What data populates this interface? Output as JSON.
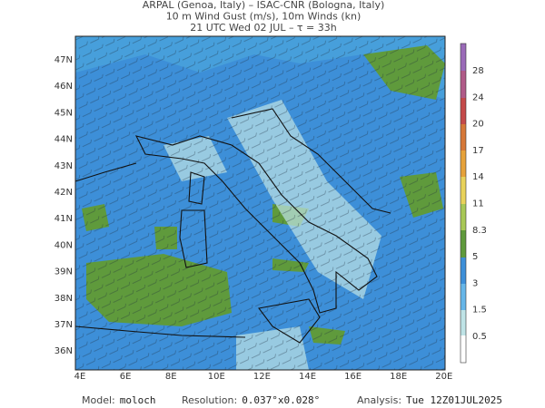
{
  "header": {
    "lines": [
      "ARPAL (Genoa, Italy)  –  ISAC-CNR (Bologna, Italy)",
      "10 m Wind Gust (m/s), 10m Winds (kn)",
      "21 UTC Wed 02 JUL  –  τ = 33h"
    ]
  },
  "map": {
    "lat_labels": [
      "47N",
      "46N",
      "45N",
      "44N",
      "43N",
      "42N",
      "41N",
      "40N",
      "39N",
      "38N",
      "37N",
      "36N"
    ],
    "lon_labels": [
      "4E",
      "6E",
      "8E",
      "10E",
      "12E",
      "14E",
      "16E",
      "18E",
      "20E"
    ]
  },
  "colorbar": {
    "labels": [
      "28",
      "24",
      "20",
      "17",
      "14",
      "11",
      "8.3",
      "5",
      "3",
      "1.5",
      "0.5"
    ]
  },
  "footer": {
    "items": [
      {
        "label": "Model:",
        "value": "moloch"
      },
      {
        "label": "Resolution:",
        "value": "0.037°x0.028°"
      },
      {
        "label": "Analysis:",
        "value": "Tue 12Z01JUL2025"
      }
    ]
  }
}
